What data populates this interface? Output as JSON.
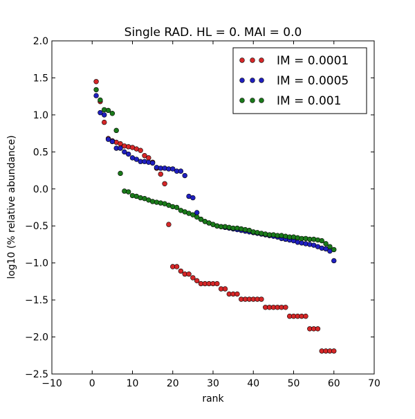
{
  "chart_data": {
    "type": "scatter",
    "title": "Single RAD. HL = 0. MAI = 0.0",
    "xlabel": "rank",
    "ylabel": "log10 (% relative abundance)",
    "xlim": [
      -10,
      70
    ],
    "ylim": [
      -2.5,
      2.0
    ],
    "xticks": [
      -10,
      0,
      10,
      20,
      30,
      40,
      50,
      60,
      70
    ],
    "xtick_labels": [
      "−10",
      "0",
      "10",
      "20",
      "30",
      "40",
      "50",
      "60",
      "70"
    ],
    "yticks": [
      -2.5,
      -2.0,
      -1.5,
      -1.0,
      -0.5,
      0.0,
      0.5,
      1.0,
      1.5,
      2.0
    ],
    "ytick_labels": [
      "−2.5",
      "−2.0",
      "−1.5",
      "−1.0",
      "−0.5",
      "0.0",
      "0.5",
      "1.0",
      "1.5",
      "2.0"
    ],
    "grid": false,
    "legend_position": "top-right",
    "series": [
      {
        "name": "IM = 0.0001",
        "color": "#d62728",
        "points": [
          [
            1,
            1.45
          ],
          [
            2,
            1.18
          ],
          [
            3,
            0.9
          ],
          [
            4,
            0.68
          ],
          [
            5,
            0.65
          ],
          [
            6,
            0.63
          ],
          [
            7,
            0.61
          ],
          [
            8,
            0.58
          ],
          [
            9,
            0.57
          ],
          [
            10,
            0.56
          ],
          [
            11,
            0.54
          ],
          [
            12,
            0.52
          ],
          [
            13,
            0.45
          ],
          [
            14,
            0.42
          ],
          [
            15,
            0.36
          ],
          [
            16,
            0.28
          ],
          [
            17,
            0.2
          ],
          [
            18,
            0.07
          ],
          [
            19,
            -0.48
          ],
          [
            20,
            -1.05
          ],
          [
            21,
            -1.05
          ],
          [
            22,
            -1.11
          ],
          [
            23,
            -1.15
          ],
          [
            24,
            -1.15
          ],
          [
            25,
            -1.2
          ],
          [
            26,
            -1.24
          ],
          [
            27,
            -1.28
          ],
          [
            28,
            -1.28
          ],
          [
            29,
            -1.28
          ],
          [
            30,
            -1.28
          ],
          [
            31,
            -1.28
          ],
          [
            32,
            -1.35
          ],
          [
            33,
            -1.35
          ],
          [
            34,
            -1.42
          ],
          [
            35,
            -1.42
          ],
          [
            36,
            -1.42
          ],
          [
            37,
            -1.49
          ],
          [
            38,
            -1.49
          ],
          [
            39,
            -1.49
          ],
          [
            40,
            -1.49
          ],
          [
            41,
            -1.49
          ],
          [
            42,
            -1.49
          ],
          [
            43,
            -1.6
          ],
          [
            44,
            -1.6
          ],
          [
            45,
            -1.6
          ],
          [
            46,
            -1.6
          ],
          [
            47,
            -1.6
          ],
          [
            48,
            -1.6
          ],
          [
            49,
            -1.72
          ],
          [
            50,
            -1.72
          ],
          [
            51,
            -1.72
          ],
          [
            52,
            -1.72
          ],
          [
            53,
            -1.72
          ],
          [
            54,
            -1.89
          ],
          [
            55,
            -1.89
          ],
          [
            56,
            -1.89
          ],
          [
            57,
            -2.19
          ],
          [
            58,
            -2.19
          ],
          [
            59,
            -2.19
          ],
          [
            60,
            -2.19
          ]
        ]
      },
      {
        "name": "IM = 0.0005",
        "color": "#1f1fbf",
        "points": [
          [
            1,
            1.26
          ],
          [
            2,
            1.03
          ],
          [
            3,
            1.0
          ],
          [
            4,
            0.67
          ],
          [
            5,
            0.64
          ],
          [
            6,
            0.55
          ],
          [
            7,
            0.55
          ],
          [
            8,
            0.5
          ],
          [
            9,
            0.47
          ],
          [
            10,
            0.42
          ],
          [
            11,
            0.4
          ],
          [
            12,
            0.37
          ],
          [
            13,
            0.37
          ],
          [
            14,
            0.36
          ],
          [
            15,
            0.35
          ],
          [
            16,
            0.29
          ],
          [
            17,
            0.28
          ],
          [
            18,
            0.28
          ],
          [
            19,
            0.27
          ],
          [
            20,
            0.27
          ],
          [
            21,
            0.24
          ],
          [
            22,
            0.24
          ],
          [
            23,
            0.18
          ],
          [
            24,
            -0.1
          ],
          [
            25,
            -0.12
          ],
          [
            26,
            -0.32
          ],
          [
            27,
            -0.41
          ],
          [
            28,
            -0.44
          ],
          [
            29,
            -0.46
          ],
          [
            30,
            -0.48
          ],
          [
            31,
            -0.5
          ],
          [
            32,
            -0.51
          ],
          [
            33,
            -0.52
          ],
          [
            34,
            -0.53
          ],
          [
            35,
            -0.54
          ],
          [
            36,
            -0.55
          ],
          [
            37,
            -0.56
          ],
          [
            38,
            -0.57
          ],
          [
            39,
            -0.58
          ],
          [
            40,
            -0.59
          ],
          [
            41,
            -0.6
          ],
          [
            42,
            -0.61
          ],
          [
            43,
            -0.62
          ],
          [
            44,
            -0.63
          ],
          [
            45,
            -0.64
          ],
          [
            46,
            -0.65
          ],
          [
            47,
            -0.67
          ],
          [
            48,
            -0.68
          ],
          [
            49,
            -0.69
          ],
          [
            50,
            -0.7
          ],
          [
            51,
            -0.72
          ],
          [
            52,
            -0.73
          ],
          [
            53,
            -0.74
          ],
          [
            54,
            -0.75
          ],
          [
            55,
            -0.76
          ],
          [
            56,
            -0.78
          ],
          [
            57,
            -0.8
          ],
          [
            58,
            -0.81
          ],
          [
            59,
            -0.84
          ],
          [
            60,
            -0.97
          ]
        ]
      },
      {
        "name": "IM = 0.001",
        "color": "#1a7a1a",
        "points": [
          [
            1,
            1.34
          ],
          [
            2,
            1.2
          ],
          [
            3,
            1.07
          ],
          [
            4,
            1.06
          ],
          [
            5,
            1.02
          ],
          [
            6,
            0.79
          ],
          [
            7,
            0.21
          ],
          [
            8,
            -0.03
          ],
          [
            9,
            -0.04
          ],
          [
            10,
            -0.09
          ],
          [
            11,
            -0.1
          ],
          [
            12,
            -0.12
          ],
          [
            13,
            -0.13
          ],
          [
            14,
            -0.15
          ],
          [
            15,
            -0.17
          ],
          [
            16,
            -0.18
          ],
          [
            17,
            -0.19
          ],
          [
            18,
            -0.2
          ],
          [
            19,
            -0.22
          ],
          [
            20,
            -0.24
          ],
          [
            21,
            -0.25
          ],
          [
            22,
            -0.29
          ],
          [
            23,
            -0.31
          ],
          [
            24,
            -0.33
          ],
          [
            25,
            -0.35
          ],
          [
            26,
            -0.38
          ],
          [
            27,
            -0.41
          ],
          [
            28,
            -0.44
          ],
          [
            29,
            -0.46
          ],
          [
            30,
            -0.48
          ],
          [
            31,
            -0.5
          ],
          [
            32,
            -0.51
          ],
          [
            33,
            -0.51
          ],
          [
            34,
            -0.52
          ],
          [
            35,
            -0.53
          ],
          [
            36,
            -0.53
          ],
          [
            37,
            -0.54
          ],
          [
            38,
            -0.55
          ],
          [
            39,
            -0.56
          ],
          [
            40,
            -0.58
          ],
          [
            41,
            -0.59
          ],
          [
            42,
            -0.6
          ],
          [
            43,
            -0.61
          ],
          [
            44,
            -0.62
          ],
          [
            45,
            -0.62
          ],
          [
            46,
            -0.63
          ],
          [
            47,
            -0.63
          ],
          [
            48,
            -0.64
          ],
          [
            49,
            -0.65
          ],
          [
            50,
            -0.65
          ],
          [
            51,
            -0.66
          ],
          [
            52,
            -0.67
          ],
          [
            53,
            -0.67
          ],
          [
            54,
            -0.68
          ],
          [
            55,
            -0.68
          ],
          [
            56,
            -0.69
          ],
          [
            57,
            -0.7
          ],
          [
            58,
            -0.74
          ],
          [
            59,
            -0.78
          ],
          [
            60,
            -0.82
          ]
        ]
      }
    ]
  }
}
